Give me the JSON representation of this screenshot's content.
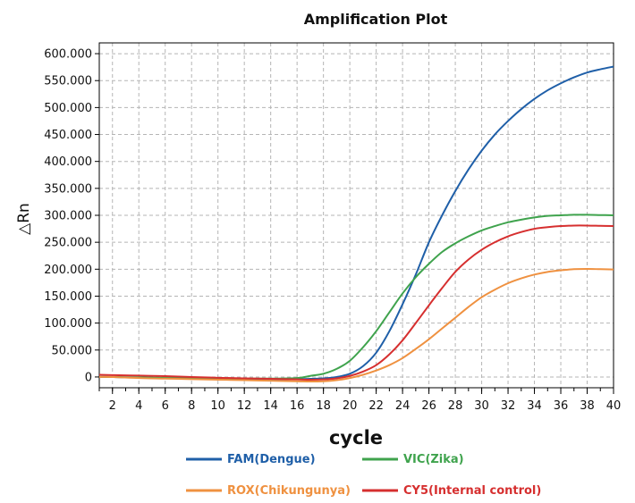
{
  "chart_data": {
    "type": "line",
    "title": "Amplification Plot",
    "xlabel": "cycle",
    "ylabel": "△Rn",
    "xlim": [
      1,
      40
    ],
    "ylim": [
      -20000,
      620000
    ],
    "x_ticks": [
      "2",
      "4",
      "6",
      "8",
      "10",
      "12",
      "14",
      "16",
      "18",
      "20",
      "22",
      "24",
      "26",
      "28",
      "30",
      "32",
      "34",
      "36",
      "38",
      "40"
    ],
    "y_ticks": [
      "0",
      "50.000",
      "100.000",
      "150.000",
      "200.000",
      "250.000",
      "300.000",
      "350.000",
      "400.000",
      "450.000",
      "500.000",
      "550.000",
      "600.000"
    ],
    "y_tick_values": [
      0,
      50000,
      100000,
      150000,
      200000,
      250000,
      300000,
      350000,
      400000,
      450000,
      500000,
      550000,
      600000
    ],
    "grid": true,
    "legend_position": "bottom",
    "x": [
      1,
      2,
      4,
      6,
      8,
      10,
      12,
      14,
      16,
      17,
      18,
      19,
      20,
      21,
      22,
      23,
      24,
      25,
      26,
      27,
      28,
      29,
      30,
      31,
      32,
      33,
      34,
      35,
      36,
      37,
      38,
      39,
      40
    ],
    "series": [
      {
        "name": "FAM(Dengue)",
        "color": "#1f5fa8",
        "values": [
          0,
          0,
          -1000,
          -2000,
          -2500,
          -3000,
          -3500,
          -4000,
          -4000,
          -3500,
          -2500,
          0,
          6000,
          20000,
          45000,
          85000,
          135000,
          190000,
          250000,
          300000,
          345000,
          385000,
          420000,
          450000,
          475000,
          497000,
          516000,
          532000,
          545000,
          556000,
          565000,
          571000,
          576000
        ]
      },
      {
        "name": "VIC(Zika)",
        "color": "#3fa34d",
        "values": [
          0,
          0,
          -1000,
          -1500,
          -2000,
          -2500,
          -3000,
          -3000,
          -2000,
          2000,
          6000,
          15000,
          30000,
          55000,
          85000,
          120000,
          155000,
          185000,
          210000,
          232000,
          248000,
          261000,
          272000,
          280000,
          287000,
          292000,
          296000,
          299000,
          300000,
          301000,
          301000,
          300500,
          300000
        ]
      },
      {
        "name": "ROX(Chikungunya)",
        "color": "#ef9140",
        "values": [
          0,
          0,
          -2000,
          -3000,
          -4000,
          -5000,
          -6000,
          -7000,
          -8000,
          -8500,
          -8000,
          -6000,
          -2000,
          4000,
          12000,
          22000,
          35000,
          52000,
          70000,
          90000,
          110000,
          130000,
          148000,
          162000,
          174000,
          183000,
          190000,
          195000,
          198000,
          200000,
          200500,
          200000,
          199500
        ]
      },
      {
        "name": "CY5(Internal control)",
        "color": "#d62f2f",
        "values": [
          4000,
          3500,
          2500,
          1500,
          0,
          -1500,
          -2500,
          -3500,
          -4500,
          -5000,
          -4500,
          -2500,
          2000,
          10000,
          22000,
          42000,
          68000,
          100000,
          133000,
          165000,
          195000,
          218000,
          236000,
          250000,
          261000,
          269000,
          275000,
          278000,
          280000,
          281000,
          281000,
          280500,
          280000
        ]
      }
    ]
  }
}
